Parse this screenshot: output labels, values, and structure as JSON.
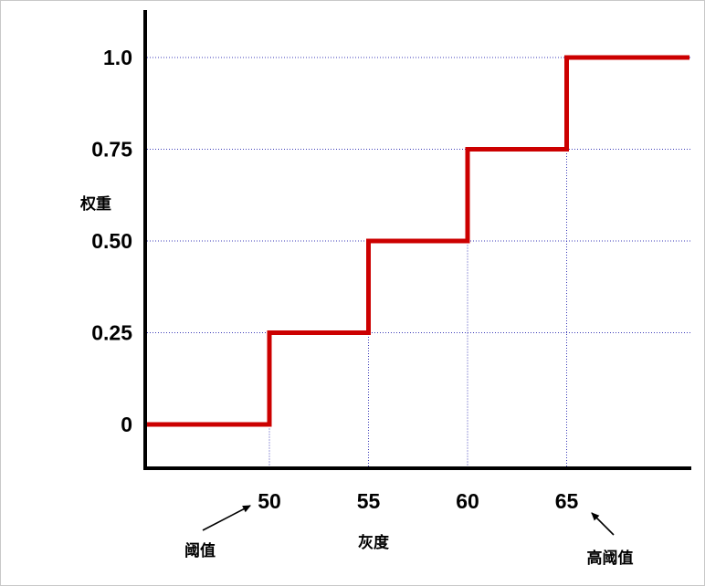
{
  "chart_data": {
    "type": "line",
    "step": true,
    "title": "",
    "xlabel": "灰度",
    "ylabel": "权重",
    "x_ticks": [
      50,
      55,
      60,
      65
    ],
    "y_ticks": [
      {
        "value": 0,
        "label": "0"
      },
      {
        "value": 0.25,
        "label": "0.25"
      },
      {
        "value": 0.5,
        "label": "0.50"
      },
      {
        "value": 0.75,
        "label": "0.75"
      },
      {
        "value": 1.0,
        "label": "1.0"
      }
    ],
    "xlim": [
      43.7,
      71.2
    ],
    "ylim": [
      -0.12,
      1.12
    ],
    "grid": "dotted guides at tick levels",
    "series": [
      {
        "color": "#cc0000",
        "points": [
          {
            "x": 43.7,
            "y": 0
          },
          {
            "x": 50,
            "y": 0
          },
          {
            "x": 50,
            "y": 0.25
          },
          {
            "x": 55,
            "y": 0.25
          },
          {
            "x": 55,
            "y": 0.5
          },
          {
            "x": 60,
            "y": 0.5
          },
          {
            "x": 60,
            "y": 0.75
          },
          {
            "x": 65,
            "y": 0.75
          },
          {
            "x": 65,
            "y": 1.0
          },
          {
            "x": 71.2,
            "y": 1.0
          }
        ]
      }
    ],
    "annotations": [
      {
        "name": "low-threshold",
        "text": "阈值",
        "points_to_x": 50
      },
      {
        "name": "high-threshold",
        "text": "高阈值",
        "points_to_x": 65
      }
    ],
    "colors": {
      "step_line": "#cc0000",
      "guide_line": "#3b3bb8",
      "axis": "#000000"
    }
  }
}
